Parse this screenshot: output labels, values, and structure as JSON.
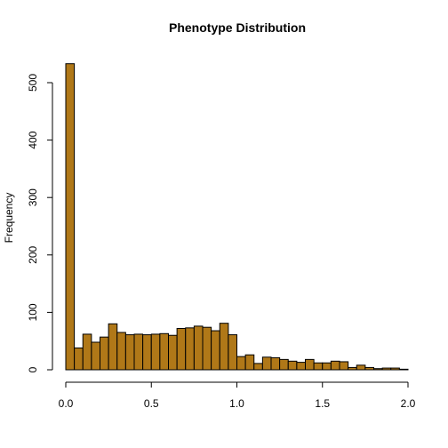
{
  "chart_data": {
    "type": "bar",
    "title": "Phenotype Distribution",
    "xlabel": "",
    "ylabel": "Frequency",
    "bin_width": 0.05,
    "x": [
      0.0,
      0.05,
      0.1,
      0.15,
      0.2,
      0.25,
      0.3,
      0.35,
      0.4,
      0.45,
      0.5,
      0.55,
      0.6,
      0.65,
      0.7,
      0.75,
      0.8,
      0.85,
      0.9,
      0.95,
      1.0,
      1.05,
      1.1,
      1.15,
      1.2,
      1.25,
      1.3,
      1.35,
      1.4,
      1.45,
      1.5,
      1.55,
      1.6,
      1.65,
      1.7,
      1.75,
      1.8,
      1.85,
      1.9,
      1.95
    ],
    "values": [
      533,
      38,
      62,
      48,
      57,
      80,
      65,
      61,
      62,
      61,
      62,
      63,
      60,
      72,
      73,
      76,
      74,
      68,
      81,
      61,
      23,
      26,
      11,
      22,
      21,
      18,
      15,
      13,
      18,
      12,
      12,
      15,
      14,
      4,
      8,
      4,
      2,
      3,
      3,
      1
    ],
    "xlim": [
      0,
      2
    ],
    "ylim": [
      0,
      500
    ],
    "xticks": [
      "0.0",
      "0.5",
      "1.0",
      "1.5",
      "2.0"
    ],
    "yticks": [
      "0",
      "100",
      "200",
      "300",
      "400",
      "500"
    ],
    "grid": false,
    "bar_color": "#b07818"
  }
}
